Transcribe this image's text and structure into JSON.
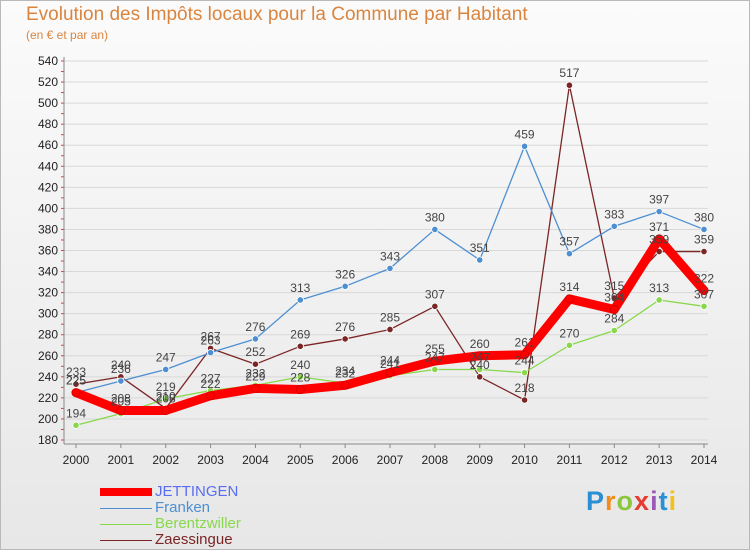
{
  "chart_data": {
    "type": "line",
    "title": "Evolution des Impôts locaux pour la Commune par Habitant",
    "subtitle": "(en € et par an)",
    "x": [
      "2000",
      "2001",
      "2002",
      "2003",
      "2004",
      "2005",
      "2006",
      "2007",
      "2008",
      "2009",
      "2010",
      "2011",
      "2012",
      "2013",
      "2014"
    ],
    "ylim": [
      180,
      540
    ],
    "yticks": [
      180,
      200,
      220,
      240,
      260,
      280,
      300,
      320,
      340,
      360,
      380,
      400,
      420,
      440,
      460,
      480,
      500,
      520,
      540
    ],
    "grid": true,
    "legend_position": "bottom-left",
    "series": [
      {
        "name": "JETTINGEN",
        "color": "#ff0000",
        "values": [
          225,
          208,
          208,
          222,
          229,
          228,
          232,
          244,
          255,
          260,
          261,
          314,
          304,
          371,
          322
        ],
        "labels": [
          "225",
          "208",
          "208",
          "222",
          "229",
          "228",
          "232",
          "244",
          "255",
          "260",
          "261",
          "314",
          "304",
          "371",
          "322"
        ]
      },
      {
        "name": "Franken",
        "color": "#4d8fd1",
        "values": [
          225,
          236,
          247,
          263,
          276,
          313,
          326,
          343,
          380,
          351,
          459,
          357,
          383,
          397,
          380
        ],
        "labels": [
          "225",
          "236",
          "247",
          "263",
          "276",
          "313",
          "326",
          "343",
          "380",
          "351",
          "459",
          "357",
          "383",
          "397",
          "380"
        ]
      },
      {
        "name": "Berentzwiller",
        "color": "#88d84b",
        "values": [
          194,
          205,
          219,
          227,
          232,
          240,
          234,
          241,
          247,
          247,
          244,
          270,
          284,
          313,
          307
        ],
        "labels": [
          "194",
          "205",
          "219",
          "227",
          "232",
          "240",
          "234",
          "241",
          "247",
          "247",
          "244",
          "270",
          "284",
          "313",
          "307"
        ]
      },
      {
        "name": "Zaessingue",
        "color": "#7b2525",
        "values": [
          233,
          240,
          210,
          267,
          252,
          269,
          276,
          285,
          307,
          240,
          218,
          517,
          315,
          359,
          359
        ],
        "labels": [
          "233",
          "240",
          "210",
          "267",
          "252",
          "269",
          "276",
          "285",
          "307",
          "240",
          "218",
          "517",
          "315",
          "359",
          "359"
        ]
      }
    ]
  },
  "legend": {
    "items": [
      {
        "name": "JETTINGEN",
        "color": "#ff0000"
      },
      {
        "name": "Franken",
        "color": "#4d8fd1"
      },
      {
        "name": "Berentzwiller",
        "color": "#88d84b"
      },
      {
        "name": "Zaessingue",
        "color": "#7b2525"
      }
    ]
  },
  "logo": {
    "text": "Proxiti",
    "letter_colors": [
      "#2b8fd6",
      "#f28c1b",
      "#8cc63f",
      "#e63b2e",
      "#9b59b6",
      "#2b8fd6",
      "#f2c21b"
    ]
  }
}
